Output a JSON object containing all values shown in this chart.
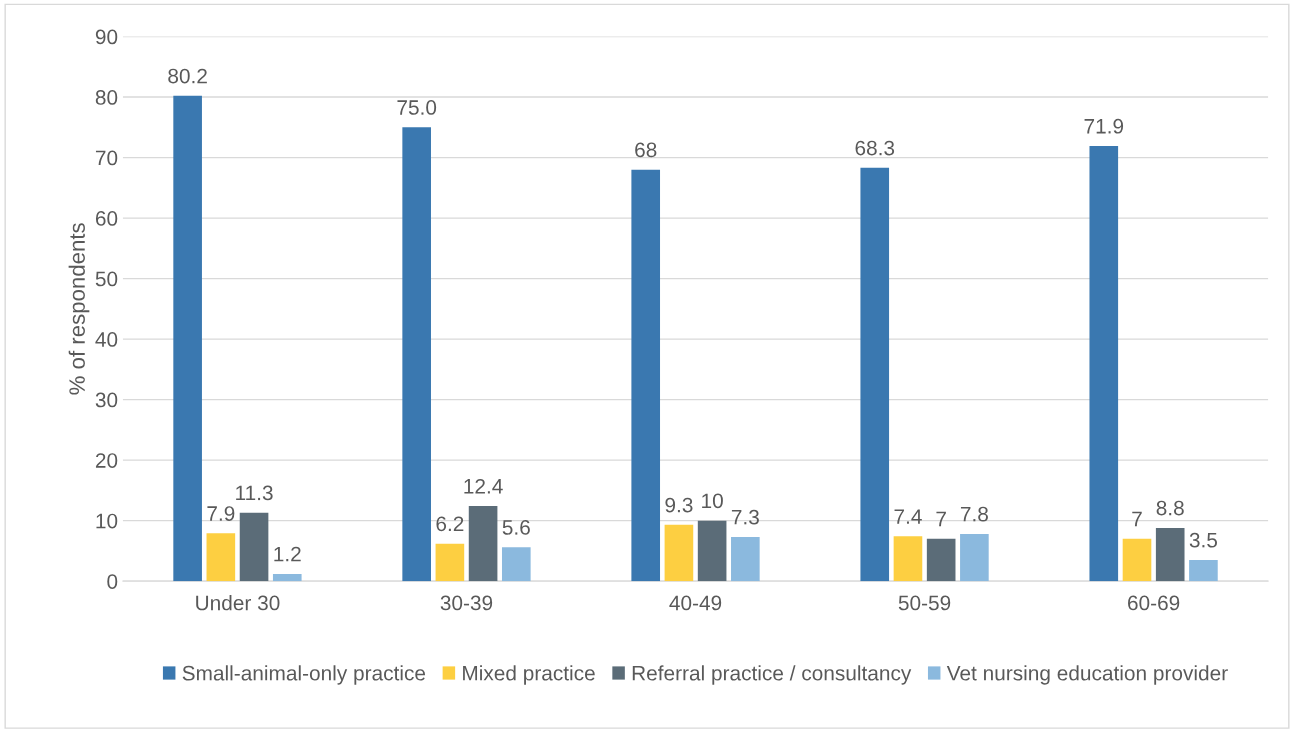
{
  "chart_data": {
    "type": "bar",
    "ylabel": "% of respondents",
    "categories": [
      "Under 30",
      "30-39",
      "40-49",
      "50-59",
      "60-69"
    ],
    "series": [
      {
        "name": "Small-animal-only practice",
        "color": "#3a78b0",
        "values": [
          80.2,
          75.0,
          68,
          68.3,
          71.9
        ],
        "value_labels": [
          "80.2",
          "75.0",
          "68",
          "68.3",
          "71.9"
        ]
      },
      {
        "name": "Mixed practice",
        "color": "#fdcf41",
        "values": [
          7.9,
          6.2,
          9.3,
          7.4,
          7
        ],
        "value_labels": [
          "7.9",
          "6.2",
          "9.3",
          "7.4",
          "7"
        ]
      },
      {
        "name": "Referral practice / consultancy",
        "color": "#5b6c78",
        "values": [
          11.3,
          12.4,
          10,
          7,
          8.8
        ],
        "value_labels": [
          "11.3",
          "12.4",
          "10",
          "7",
          "8.8"
        ]
      },
      {
        "name": "Vet nursing education provider",
        "color": "#8bb9de",
        "values": [
          1.2,
          5.6,
          7.3,
          7.8,
          3.5
        ],
        "value_labels": [
          "1.2",
          "5.6",
          "7.3",
          "7.8",
          "3.5"
        ]
      }
    ],
    "ylim": [
      0,
      90
    ],
    "yticks": [
      0,
      10,
      20,
      30,
      40,
      50,
      60,
      70,
      80,
      90
    ],
    "grid": "y",
    "legend": "bottom"
  }
}
